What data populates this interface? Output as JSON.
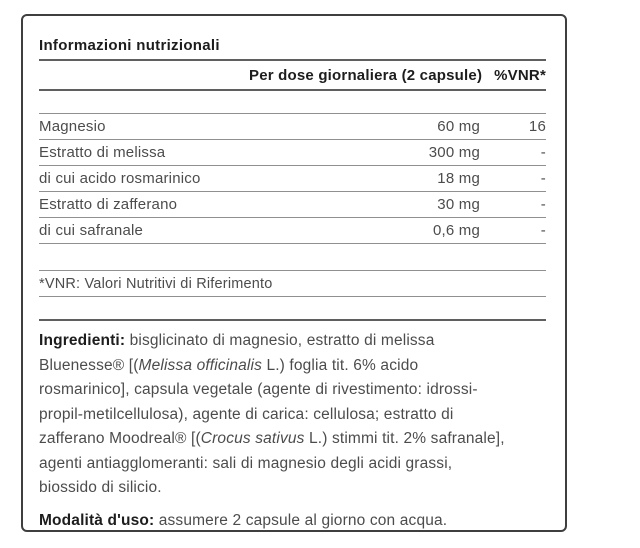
{
  "panel": {
    "title": "Informazioni nutrizionali",
    "header": {
      "dose_label": "Per dose giornaliera (2 capsule)",
      "vnr_label": "%VNR*"
    },
    "rows": [
      {
        "label": "Magnesio",
        "value": "60 mg",
        "vnr": "16"
      },
      {
        "label": "Estratto di melissa",
        "value": "300 mg",
        "vnr": "-"
      },
      {
        "label": "di cui acido rosmarinico",
        "value": "18 mg",
        "vnr": "-"
      },
      {
        "label": "Estratto di zafferano",
        "value": "30 mg",
        "vnr": "-"
      },
      {
        "label": "di cui safranale",
        "value": "0,6 mg",
        "vnr": "-"
      }
    ],
    "footnote": "*VNR: Valori Nutritivi di Riferimento",
    "ingredients_segments": [
      {
        "text": "Ingredienti:",
        "style": "bold"
      },
      {
        "text": " bisglicinato di magnesio, estratto di melissa\nBluenesse® [(",
        "style": "normal"
      },
      {
        "text": "Melissa officinalis",
        "style": "italic"
      },
      {
        "text": " L.) foglia tit. 6% acido\nrosmarinico], capsula vegetale (agente di rivestimento: idrossi-\npropil-metilcellulosa), agente di carica: cellulosa; estratto di\nzafferano Moodreal® [(",
        "style": "normal"
      },
      {
        "text": "Crocus sativus",
        "style": "italic"
      },
      {
        "text": " L.) stimmi tit. 2% safranale],\nagenti antiagglomeranti: sali di magnesio degli acidi grassi,\nbiossido di silicio.",
        "style": "normal"
      }
    ],
    "usage_segments": [
      {
        "text": "Modalità d'uso:",
        "style": "bold"
      },
      {
        "text": " assumere 2 capsule al giorno con acqua.",
        "style": "normal"
      }
    ]
  },
  "colors": {
    "text_primary": "#1d1d1d",
    "text_body": "#4c4c4c",
    "panel_border": "#3f3f3f",
    "rule_strong": "#5f5f5f",
    "rule_light": "#909090"
  }
}
